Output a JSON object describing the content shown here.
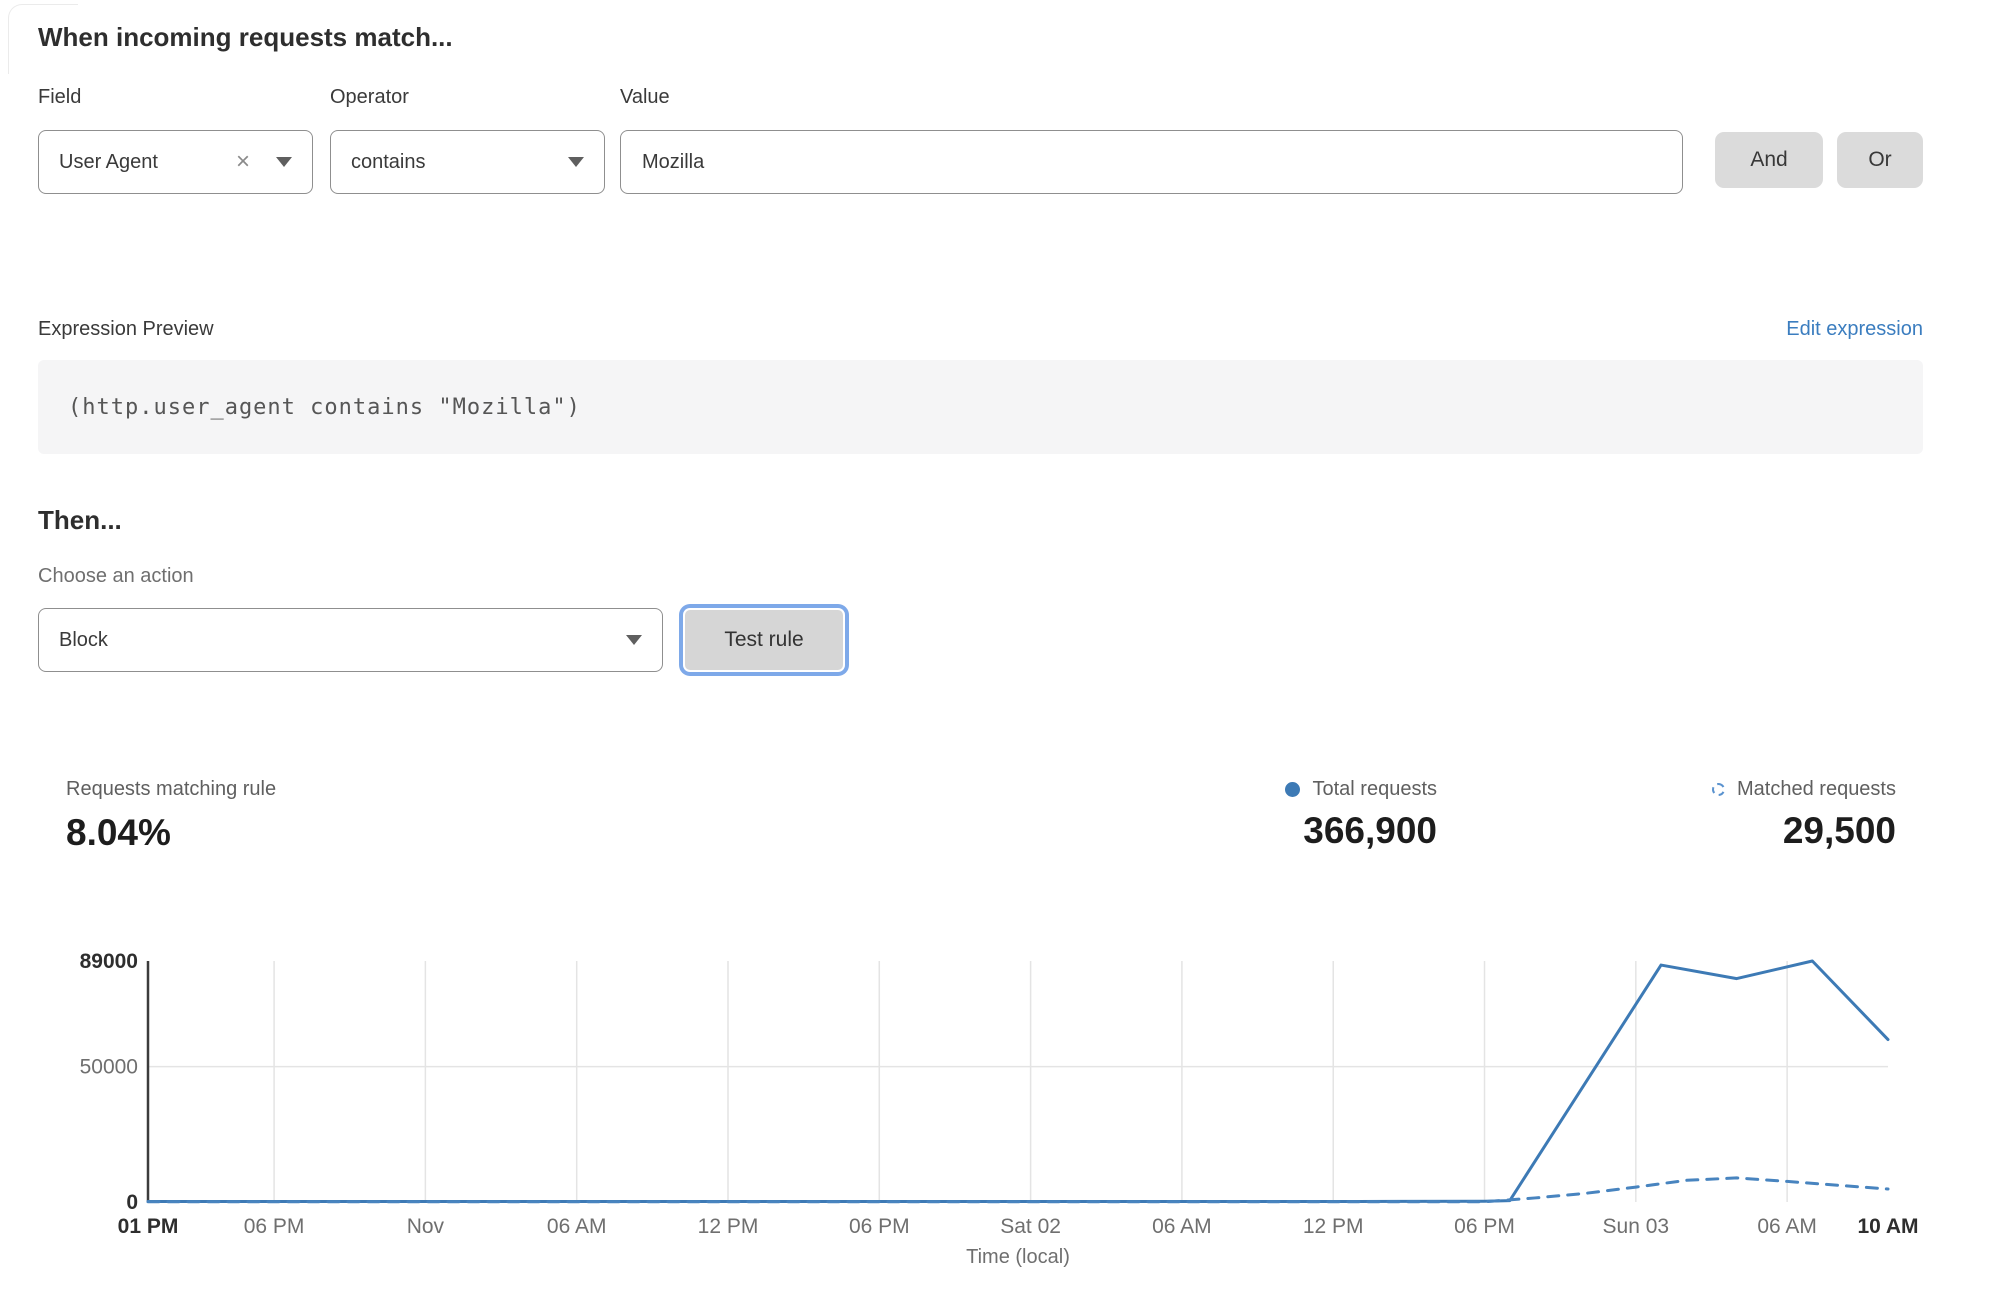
{
  "rule_builder": {
    "heading": "When incoming requests match...",
    "field": {
      "label": "Field",
      "value": "User Agent"
    },
    "operator": {
      "label": "Operator",
      "value": "contains"
    },
    "value": {
      "label": "Value",
      "value": "Mozilla"
    },
    "and_label": "And",
    "or_label": "Or"
  },
  "expression": {
    "preview_label": "Expression Preview",
    "edit_link": "Edit expression",
    "code": "(http.user_agent contains \"Mozilla\")"
  },
  "action": {
    "heading": "Then...",
    "choose_label": "Choose an action",
    "selected": "Block",
    "test_button": "Test rule"
  },
  "stats": {
    "matching": {
      "label": "Requests matching rule",
      "value": "8.04%"
    },
    "total": {
      "label": "Total requests",
      "value": "366,900"
    },
    "matched": {
      "label": "Matched requests",
      "value": "29,500"
    }
  },
  "colors": {
    "line_solid": "#3d7ab5",
    "line_dashed": "#4884bf",
    "grid": "#e4e4e4",
    "axis": "#3c3c3c",
    "tick_muted": "#6f6f6f",
    "tick_bold": "#2e2e2e",
    "link_blue": "#3b7dbf",
    "focus_ring": "#7ea9e9"
  },
  "chart_data": {
    "type": "line",
    "title": "",
    "xlabel": "Time (local)",
    "ylabel": "",
    "x_unit": "hours from first tick (01 PM)",
    "xlim": [
      0,
      69
    ],
    "ylim": [
      0,
      89000
    ],
    "grid": "vertical per tick + horizontal at 50000",
    "legend_position": "above-right (in stats row)",
    "legend": [
      {
        "label": "Total requests",
        "style": "solid"
      },
      {
        "label": "Matched requests",
        "style": "dashed"
      }
    ],
    "y_ticks": [
      {
        "value": 0,
        "label": "0",
        "bold": true
      },
      {
        "value": 50000,
        "label": "50000",
        "bold": false
      },
      {
        "value": 89000,
        "label": "89000",
        "bold": true
      }
    ],
    "x_ticks": [
      {
        "hour": 0,
        "label": "01 PM",
        "bold": true
      },
      {
        "hour": 5,
        "label": "06 PM",
        "bold": false
      },
      {
        "hour": 11,
        "label": "Nov",
        "bold": false
      },
      {
        "hour": 17,
        "label": "06 AM",
        "bold": false
      },
      {
        "hour": 23,
        "label": "12 PM",
        "bold": false
      },
      {
        "hour": 29,
        "label": "06 PM",
        "bold": false
      },
      {
        "hour": 35,
        "label": "Sat 02",
        "bold": false
      },
      {
        "hour": 41,
        "label": "06 AM",
        "bold": false
      },
      {
        "hour": 47,
        "label": "12 PM",
        "bold": false
      },
      {
        "hour": 53,
        "label": "06 PM",
        "bold": false
      },
      {
        "hour": 59,
        "label": "Sun 03",
        "bold": false
      },
      {
        "hour": 65,
        "label": "06 AM",
        "bold": false
      },
      {
        "hour": 69,
        "label": "10 AM",
        "bold": true
      }
    ],
    "series": [
      {
        "name": "Total requests",
        "style": "solid",
        "points": [
          [
            0,
            200
          ],
          [
            6,
            200
          ],
          [
            12,
            200
          ],
          [
            18,
            200
          ],
          [
            24,
            200
          ],
          [
            30,
            200
          ],
          [
            36,
            200
          ],
          [
            42,
            200
          ],
          [
            48,
            200
          ],
          [
            53,
            300
          ],
          [
            54,
            500
          ],
          [
            60,
            87500
          ],
          [
            63,
            82500
          ],
          [
            66,
            89000
          ],
          [
            69,
            60000
          ]
        ]
      },
      {
        "name": "Matched requests",
        "style": "dashed",
        "points": [
          [
            0,
            100
          ],
          [
            6,
            100
          ],
          [
            12,
            100
          ],
          [
            18,
            100
          ],
          [
            24,
            100
          ],
          [
            30,
            100
          ],
          [
            36,
            100
          ],
          [
            42,
            100
          ],
          [
            48,
            100
          ],
          [
            53,
            100
          ],
          [
            55,
            1500
          ],
          [
            57,
            3200
          ],
          [
            59,
            5500
          ],
          [
            61,
            8000
          ],
          [
            63,
            8900
          ],
          [
            65,
            7600
          ],
          [
            67,
            6200
          ],
          [
            69,
            4800
          ]
        ]
      }
    ]
  }
}
